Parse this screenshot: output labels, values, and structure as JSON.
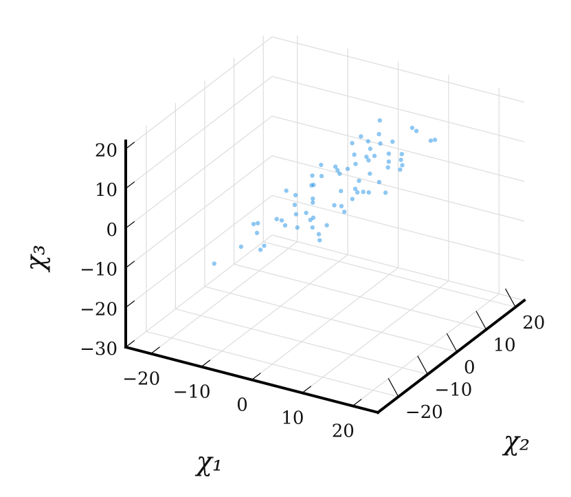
{
  "chart_data": {
    "type": "scatter3d",
    "xlabel": "χ₁",
    "ylabel": "χ₂",
    "zlabel": "χ₃",
    "xlim": [
      -25,
      25
    ],
    "ylim": [
      -27,
      23
    ],
    "zlim": [
      -30,
      22
    ],
    "xticks": [
      {
        "value": -20,
        "label": "−20"
      },
      {
        "value": -10,
        "label": "−10"
      },
      0,
      10,
      20
    ],
    "yticks": [
      {
        "value": -20,
        "label": "−20"
      },
      {
        "value": -10,
        "label": "−10"
      },
      0,
      10,
      20
    ],
    "zticks": [
      {
        "value": -30,
        "label": "−30"
      },
      {
        "value": -20,
        "label": "−20"
      },
      {
        "value": -10,
        "label": "−10"
      },
      0,
      10,
      20
    ],
    "grid": true,
    "color": "#1e8fe6",
    "x": [
      -3,
      5,
      8,
      -10,
      2,
      12,
      -6,
      0,
      4,
      -2,
      7,
      -8,
      10,
      1,
      -4,
      6,
      -12,
      3,
      9,
      -1,
      -5,
      11,
      14,
      -7,
      2,
      0,
      5,
      -3,
      8,
      -9,
      4,
      -15,
      6,
      1,
      -2,
      10,
      -6,
      3,
      13,
      -4,
      7,
      0,
      -11,
      2,
      5,
      -1,
      9,
      -5,
      16,
      -8,
      4,
      1,
      -3,
      6,
      11,
      -7,
      0,
      3,
      -13,
      8,
      2,
      -2,
      5,
      -6,
      12,
      1,
      -10,
      7,
      4,
      -1
    ],
    "y": [
      2,
      -4,
      6,
      -8,
      10,
      3,
      -2,
      -6,
      8,
      5,
      -1,
      -9,
      12,
      4,
      -5,
      -3,
      -10,
      7,
      1,
      9,
      -7,
      5,
      10,
      -12,
      0,
      3,
      -5,
      -1,
      14,
      -3,
      6,
      -14,
      -2,
      11,
      -8,
      7,
      4,
      -4,
      2,
      1,
      9,
      -7,
      -6,
      5,
      -10,
      12,
      4,
      2,
      8,
      -3,
      -11,
      15,
      -1,
      3,
      -6,
      0,
      8,
      -9,
      -4,
      6,
      13,
      -5,
      1,
      7,
      -2,
      -8,
      2,
      -3,
      10,
      4
    ],
    "z": [
      4,
      1,
      9,
      -7,
      8,
      10,
      -2,
      -1,
      8,
      5,
      5,
      -9,
      14,
      6,
      -2,
      4,
      -10,
      8,
      7,
      9,
      -4,
      11,
      14,
      -8,
      3,
      5,
      3,
      -1,
      13,
      -6,
      8,
      -13,
      6,
      9,
      -3,
      11,
      2,
      2,
      12,
      2,
      12,
      -1,
      -6,
      7,
      1,
      9,
      9,
      1,
      16,
      -6,
      -1,
      12,
      0,
      7,
      9,
      -1,
      7,
      -4,
      -8,
      11,
      10,
      -1,
      6,
      3,
      7,
      -2,
      -2,
      6,
      10,
      5
    ]
  }
}
